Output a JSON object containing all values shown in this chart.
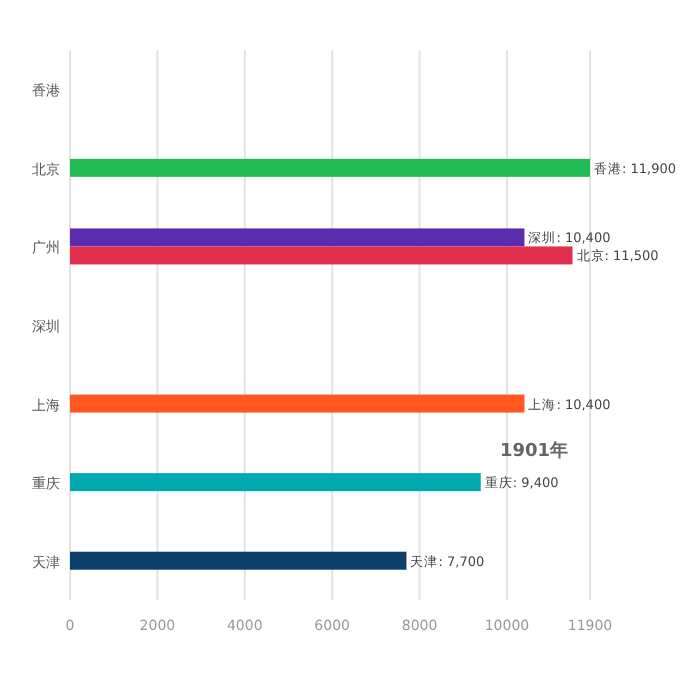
{
  "chart_data": {
    "type": "bar",
    "orientation": "horizontal",
    "title": "1901年",
    "categories": [
      "香港",
      "北京",
      "广州",
      "深圳",
      "上海",
      "重庆",
      "天津"
    ],
    "series": [
      {
        "values": [
          null,
          11900,
          10400,
          null,
          10400,
          9400,
          7700
        ],
        "colors": [
          null,
          "#22bb55",
          "#5a2db0",
          null,
          "#ff5722",
          "#00a8b0",
          "#0d3f6b"
        ],
        "value_labels": [
          null,
          "香港: 11,900",
          "深圳: 10,400",
          null,
          "上海: 10,400",
          "重庆: 9,400",
          "天津: 7,700"
        ]
      },
      {
        "values": [
          null,
          null,
          11500,
          null,
          null,
          null,
          null
        ],
        "color": "#e0304e",
        "value_labels": [
          null,
          null,
          "北京: 11,500",
          null,
          null,
          null,
          null
        ]
      }
    ],
    "xlim": [
      0,
      11900
    ],
    "xticks": [
      0,
      2000,
      4000,
      6000,
      8000,
      10000,
      11900
    ],
    "grid": "x"
  }
}
